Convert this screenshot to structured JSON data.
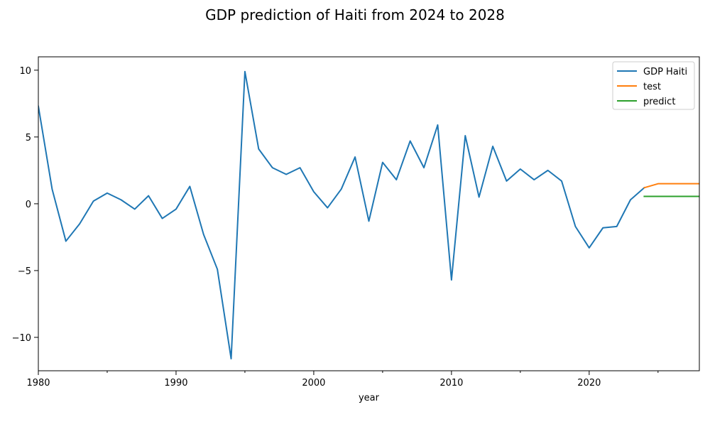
{
  "chart_data": {
    "type": "line",
    "title": "GDP prediction of Haiti from 2024 to 2028",
    "xlabel": "year",
    "ylabel": "",
    "xlim": [
      1980,
      2028
    ],
    "ylim": [
      -12.5,
      11
    ],
    "x_ticks": [
      1980,
      1990,
      2000,
      2010,
      2020
    ],
    "x_ticks_minor": [
      1985,
      1995,
      2005,
      2015,
      2025
    ],
    "y_ticks": [
      -10,
      -5,
      0,
      5,
      10
    ],
    "grid": false,
    "legend_position": "top-right",
    "series": [
      {
        "name": "GDP Haiti",
        "color": "#1f77b4",
        "x": [
          1980,
          1981,
          1982,
          1983,
          1984,
          1985,
          1986,
          1987,
          1988,
          1989,
          1990,
          1991,
          1992,
          1993,
          1994,
          1995,
          1996,
          1997,
          1998,
          1999,
          2000,
          2001,
          2002,
          2003,
          2004,
          2005,
          2006,
          2007,
          2008,
          2009,
          2010,
          2011,
          2012,
          2013,
          2014,
          2015,
          2016,
          2017,
          2018,
          2019,
          2020,
          2021,
          2022,
          2023,
          2024
        ],
        "values": [
          7.3,
          1.1,
          -2.8,
          -1.5,
          0.2,
          0.8,
          0.3,
          -0.4,
          0.6,
          -1.1,
          -0.4,
          1.3,
          -2.3,
          -4.9,
          -11.6,
          9.9,
          4.1,
          2.7,
          2.2,
          2.7,
          0.9,
          -0.3,
          1.1,
          3.5,
          -1.3,
          3.1,
          1.8,
          4.7,
          2.7,
          5.9,
          -5.7,
          5.1,
          0.5,
          4.3,
          1.7,
          2.6,
          1.8,
          2.5,
          1.7,
          -1.7,
          -3.3,
          -1.8,
          -1.7,
          0.3,
          1.2
        ]
      },
      {
        "name": "test",
        "color": "#ff7f0e",
        "x": [
          2024,
          2025,
          2026,
          2027,
          2028
        ],
        "values": [
          1.2,
          1.5,
          1.5,
          1.5,
          1.5
        ]
      },
      {
        "name": "predict",
        "color": "#2ca02c",
        "x": [
          2024,
          2025,
          2026,
          2027,
          2028
        ],
        "values": [
          0.55,
          0.55,
          0.55,
          0.55,
          0.55
        ]
      }
    ]
  }
}
